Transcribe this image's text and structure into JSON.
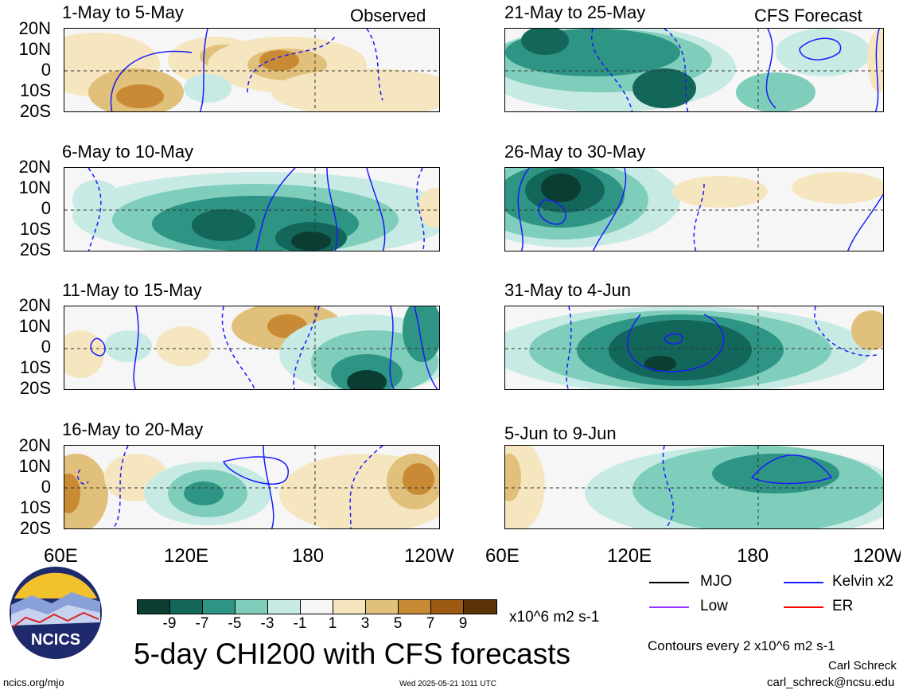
{
  "header": {
    "left_label": "Observed",
    "right_label": "CFS Forecast"
  },
  "panels_left": [
    {
      "title": "1-May to 5-May"
    },
    {
      "title": "6-May to 10-May"
    },
    {
      "title": "11-May to 15-May"
    },
    {
      "title": "16-May to 20-May"
    }
  ],
  "panels_right": [
    {
      "title": "21-May to 25-May"
    },
    {
      "title": "26-May to 30-May"
    },
    {
      "title": "31-May to 4-Jun"
    },
    {
      "title": "5-Jun to 9-Jun"
    }
  ],
  "lat_labels": [
    "20N",
    "10N",
    "0",
    "10S",
    "20S"
  ],
  "lon_labels": [
    "60E",
    "120E",
    "180",
    "120W"
  ],
  "colorbar": {
    "labels": [
      "-9",
      "-7",
      "-5",
      "-3",
      "-1",
      "1",
      "3",
      "5",
      "7",
      "9"
    ],
    "units": "x10^6 m2 s-1",
    "colors": [
      "#0b3d33",
      "#13665a",
      "#2e9483",
      "#7fcdbb",
      "#c7ebe4",
      "#f6f6f6",
      "#f5e6c0",
      "#e0c07a",
      "#c98a35",
      "#9c5a12",
      "#5a3306"
    ]
  },
  "title": "5-day CHI200 with CFS forecasts",
  "legend": [
    {
      "label": "MJO",
      "color": "#000000"
    },
    {
      "label": "Kelvin x2",
      "color": "#1a1aff"
    },
    {
      "label": "Low",
      "color": "#9933ff"
    },
    {
      "label": "ER",
      "color": "#ff0000"
    }
  ],
  "contour_note": "Contours every 2 x10^6 m2 s-1",
  "author": "Carl Schreck",
  "email": "carl_schreck@ncsu.edu",
  "site": "ncics.org/mjo",
  "timestamp": "Wed 2025-05-21 1011 UTC",
  "logo_text": "NCICS"
}
